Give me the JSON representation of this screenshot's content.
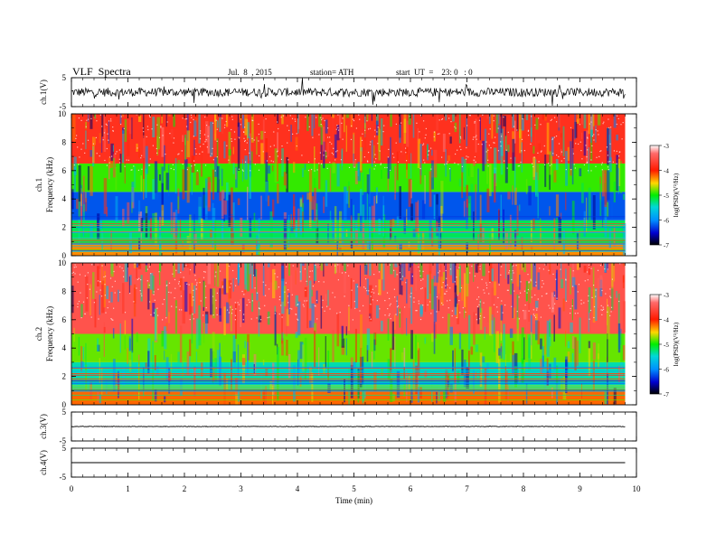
{
  "header": {
    "title": "VLF  Spectra",
    "date": "Jul.  8  , 2015",
    "station": "station= ATH",
    "start": "start  UT  =    23: 0   : 0"
  },
  "chart_data": [
    {
      "type": "line",
      "ylabel": "ch.1(V)",
      "ylim": [
        -5,
        5
      ],
      "yticks": [
        "5",
        "-5"
      ],
      "description_values": {
        "baseline": 0,
        "typical_amplitude": 1.5,
        "peak_amplitude": 4
      }
    },
    {
      "type": "heatmap",
      "ylabel": "ch.1\nFrequency  (kHz)",
      "ylim": [
        0,
        10
      ],
      "yticks": [
        "0",
        "2",
        "4",
        "6",
        "8",
        "10"
      ],
      "colorbar": {
        "label": "log(PSD)(V²/Hz)",
        "range": [
          -7,
          -3
        ],
        "ticks": [
          "-3",
          "-4",
          "-5",
          "-6",
          "-7"
        ]
      },
      "bands": [
        {
          "freq_khz": [
            0,
            0.8
          ],
          "logpsd": -4.3
        },
        {
          "freq_khz": [
            0.8,
            2.5
          ],
          "logpsd": -5.2
        },
        {
          "freq_khz": [
            2.5,
            4.5
          ],
          "logpsd": -6.2
        },
        {
          "freq_khz": [
            4.5,
            6.5
          ],
          "logpsd": -4.9
        },
        {
          "freq_khz": [
            6.5,
            10
          ],
          "logpsd": -3.8
        }
      ]
    },
    {
      "type": "heatmap",
      "ylabel": "ch.2\nFrequency  (kHz)",
      "ylim": [
        0,
        10
      ],
      "yticks": [
        "0",
        "2",
        "4",
        "6",
        "8",
        "10"
      ],
      "colorbar": {
        "label": "log(PSD)(V²/Hz)",
        "range": [
          -7,
          -3
        ],
        "ticks": [
          "-3",
          "-4",
          "-5",
          "-6",
          "-7"
        ]
      },
      "bands": [
        {
          "freq_khz": [
            0,
            1.0
          ],
          "logpsd": -4.2
        },
        {
          "freq_khz": [
            1.0,
            3.0
          ],
          "logpsd": -5.4
        },
        {
          "freq_khz": [
            3.0,
            5.0
          ],
          "logpsd": -4.8
        },
        {
          "freq_khz": [
            5.0,
            10
          ],
          "logpsd": -3.5
        }
      ]
    },
    {
      "type": "line",
      "ylabel": "ch.3(V)",
      "ylim": [
        -5,
        5
      ],
      "yticks": [
        "5",
        "-5"
      ],
      "description_values": {
        "baseline": 0,
        "typical_amplitude": 0.1
      }
    },
    {
      "type": "line",
      "ylabel": "ch.4(V)",
      "ylim": [
        -5,
        5
      ],
      "yticks": [
        "5",
        "-5"
      ],
      "description_values": {
        "baseline": 0,
        "typical_amplitude": 0
      }
    }
  ],
  "xaxis": {
    "label": "Time  (min)",
    "range": [
      0,
      10
    ],
    "data_end": 9.8,
    "ticks": [
      "0",
      "1",
      "2",
      "3",
      "4",
      "5",
      "6",
      "7",
      "8",
      "9",
      "10"
    ]
  }
}
